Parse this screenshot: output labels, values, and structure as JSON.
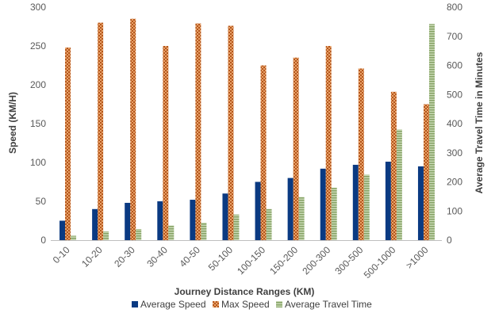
{
  "chart_data": {
    "type": "bar",
    "title": "",
    "categories": [
      "0-10",
      "10-20",
      "20-30",
      "30-40",
      "40-50",
      "50-100",
      "100-150",
      "150-200",
      "200-300",
      "300-500",
      "500-1000",
      ">1000"
    ],
    "series": [
      {
        "name": "Average Speed",
        "axis": "left",
        "color": "#0a3a82",
        "pattern": "solid",
        "values": [
          25,
          40,
          48,
          50,
          52,
          60,
          75,
          80,
          92,
          97,
          101,
          95
        ]
      },
      {
        "name": "Max Speed",
        "axis": "left",
        "color": "#c26a2a",
        "pattern": "checker",
        "values": [
          248,
          280,
          285,
          250,
          279,
          276,
          225,
          235,
          250,
          221,
          191,
          175
        ]
      },
      {
        "name": "Average Travel Time",
        "axis": "right",
        "color": "#9cb57e",
        "pattern": "stripes",
        "values": [
          15,
          30,
          38,
          50,
          60,
          88,
          107,
          148,
          180,
          225,
          380,
          742
        ]
      }
    ],
    "xlabel": "Journey Distance Ranges (KM)",
    "ylabel": "Speed (KM/H)",
    "y2label": "Average Travel Time in Minutes",
    "ylim": [
      0,
      300
    ],
    "y2lim": [
      0,
      800
    ],
    "yticks": [
      "0",
      "50",
      "100",
      "150",
      "200",
      "250",
      "300"
    ],
    "y2ticks": [
      "0",
      "100",
      "200",
      "300",
      "400",
      "500",
      "600",
      "700",
      "800"
    ],
    "grid": false,
    "legend_position": "bottom"
  }
}
